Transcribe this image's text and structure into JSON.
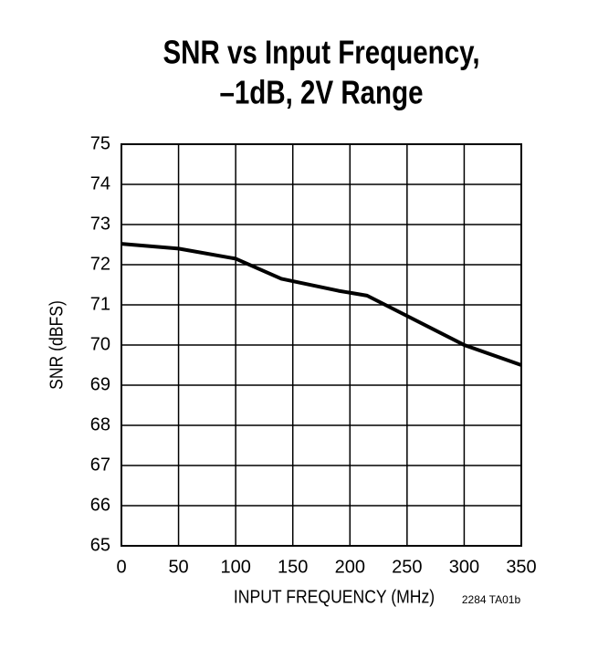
{
  "chart_data": {
    "type": "line",
    "title": [
      "SNR vs Input Frequency,",
      "–1dB, 2V Range"
    ],
    "x_label": "INPUT FREQUENCY (MHz)",
    "y_label": "SNR (dBFS)",
    "annotation": "2284 TA01b",
    "x": [
      0,
      50,
      100,
      140,
      190,
      215,
      300,
      350
    ],
    "series": [
      {
        "name": "SNR",
        "color": "#000000",
        "values": [
          72.52,
          72.4,
          72.15,
          71.65,
          71.35,
          71.23,
          70.0,
          69.5
        ]
      }
    ],
    "xlim": [
      0,
      350
    ],
    "xticks": [
      0,
      50,
      100,
      150,
      200,
      250,
      300,
      350
    ],
    "ylim": [
      65,
      75
    ],
    "yticks": [
      65,
      66,
      67,
      68,
      69,
      70,
      71,
      72,
      73,
      74,
      75
    ],
    "grid": true
  }
}
